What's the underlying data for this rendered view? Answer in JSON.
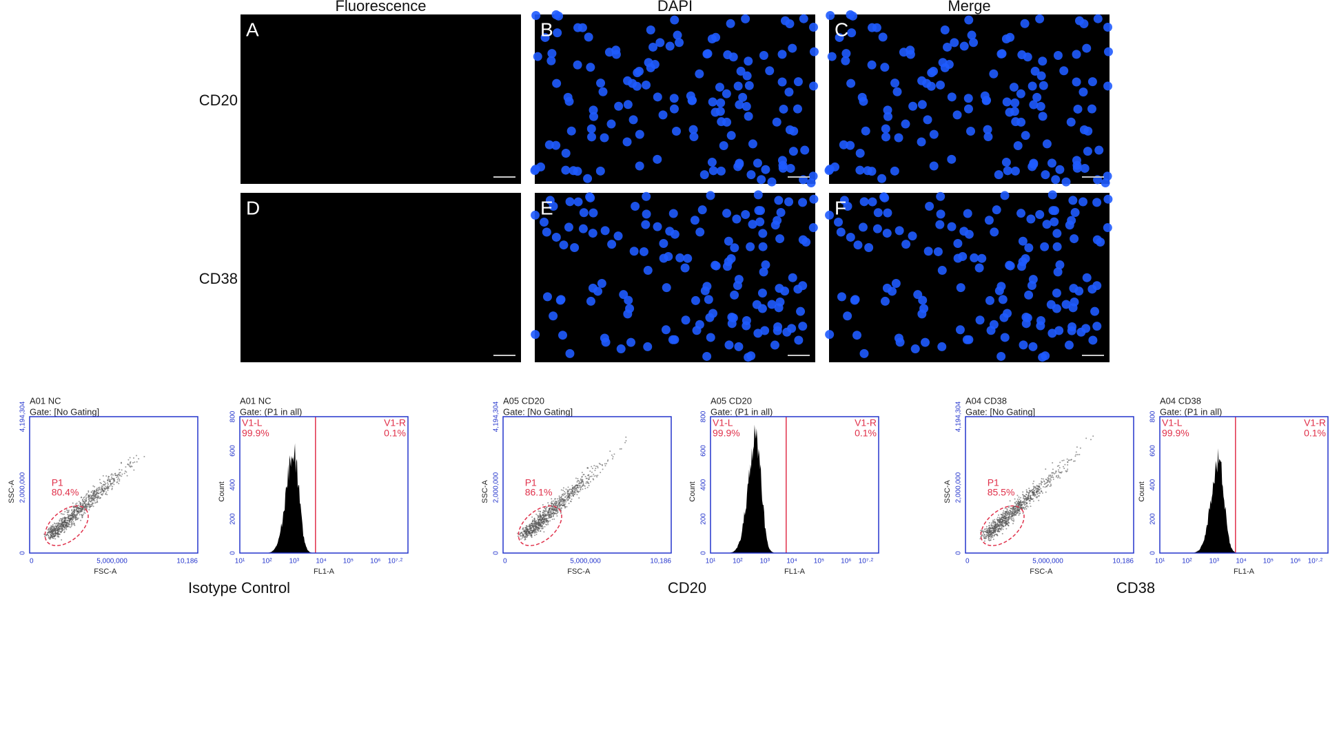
{
  "microscopy": {
    "columns": [
      "Fluorescence",
      "DAPI",
      "Merge"
    ],
    "rows": [
      "CD20",
      "CD38"
    ],
    "panels": [
      "A",
      "B",
      "C",
      "D",
      "E",
      "F"
    ]
  },
  "flow": [
    {
      "label": "Isotype Control",
      "scatter": {
        "title": "A01 NC",
        "gate": "Gate: [No Gating]",
        "x_label": "FSC-A",
        "y_label": "SSC-A",
        "xticks": [
          "0",
          "5,000,000",
          "10,186"
        ],
        "yticks": [
          "0",
          "2,000,000",
          "4,194,304"
        ],
        "region": "P1",
        "region_pct": "80.4%"
      },
      "histogram": {
        "title": "A01 NC",
        "gate": "Gate: (P1 in all)",
        "x_label": "FL1-A",
        "y_label": "Count",
        "xticks": [
          "10¹",
          "10²",
          "10³",
          "10⁴",
          "10⁵",
          "10⁶",
          "10⁷·²"
        ],
        "yticks": [
          "0",
          "200",
          "400",
          "600",
          "800"
        ],
        "left_name": "V1-L",
        "left_pct": "99.9%",
        "right_name": "V1-R",
        "right_pct": "0.1%"
      }
    },
    {
      "label": "CD20",
      "scatter": {
        "title": "A05 CD20",
        "gate": "Gate: [No Gating]",
        "x_label": "FSC-A",
        "y_label": "SSC-A",
        "xticks": [
          "0",
          "5,000,000",
          "10,186"
        ],
        "yticks": [
          "0",
          "2,000,000",
          "4,194,304"
        ],
        "region": "P1",
        "region_pct": "86.1%"
      },
      "histogram": {
        "title": "A05 CD20",
        "gate": "Gate: (P1 in all)",
        "x_label": "FL1-A",
        "y_label": "Count",
        "xticks": [
          "10¹",
          "10²",
          "10³",
          "10⁴",
          "10⁵",
          "10⁶",
          "10⁷·²"
        ],
        "yticks": [
          "0",
          "200",
          "400",
          "600",
          "800"
        ],
        "left_name": "V1-L",
        "left_pct": "99.9%",
        "right_name": "V1-R",
        "right_pct": "0.1%"
      }
    },
    {
      "label": "CD38",
      "scatter": {
        "title": "A04 CD38",
        "gate": "Gate: [No Gating]",
        "x_label": "FSC-A",
        "y_label": "SSC-A",
        "xticks": [
          "0",
          "5,000,000",
          "10,186"
        ],
        "yticks": [
          "0",
          "2,000,000",
          "4,194,304"
        ],
        "region": "P1",
        "region_pct": "85.5%"
      },
      "histogram": {
        "title": "A04 CD38",
        "gate": "Gate: (P1 in all)",
        "x_label": "FL1-A",
        "y_label": "Count",
        "xticks": [
          "10¹",
          "10²",
          "10³",
          "10⁴",
          "10⁵",
          "10⁶",
          "10⁷·²"
        ],
        "yticks": [
          "0",
          "200",
          "400",
          "600",
          "800"
        ],
        "left_name": "V1-L",
        "left_pct": "99.9%",
        "right_name": "V1-R",
        "right_pct": "0.1%"
      }
    }
  ]
}
